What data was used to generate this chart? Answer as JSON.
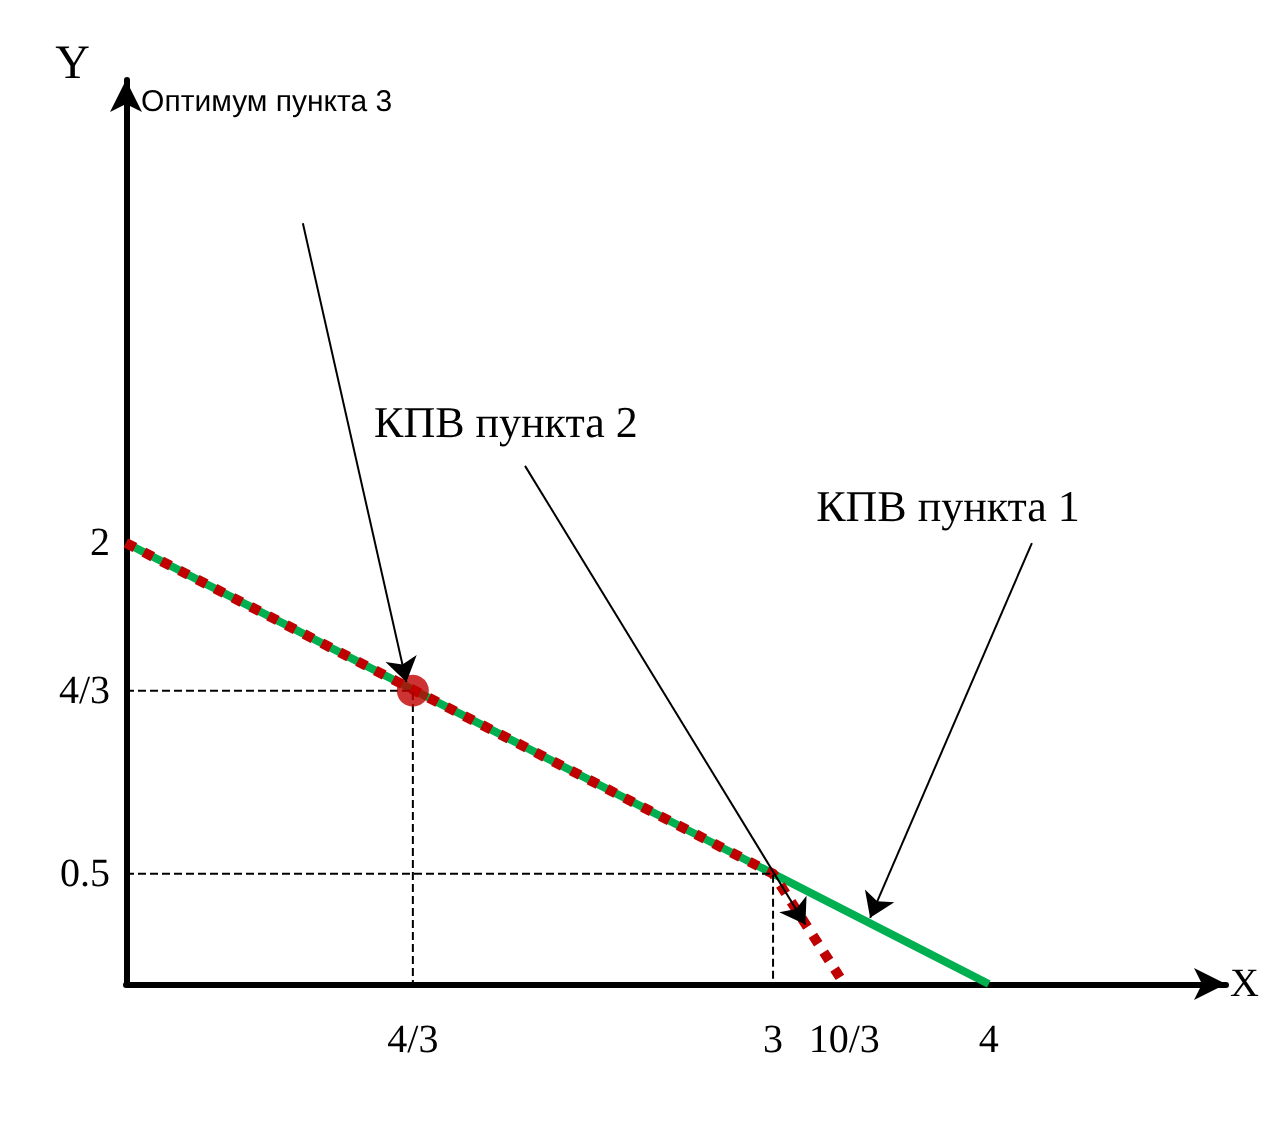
{
  "chart_data": {
    "type": "line",
    "xlabel": "X",
    "ylabel": "Y",
    "xlim": [
      0,
      5.1
    ],
    "ylim": [
      0,
      4.1
    ],
    "xticks": [
      {
        "value": 1.33,
        "label": "4/3"
      },
      3,
      {
        "value": 3.33,
        "label": "10/3"
      },
      4
    ],
    "yticks": [
      2,
      {
        "value": 1.33,
        "label": "4/3"
      },
      0.5
    ],
    "grid": false,
    "series": [
      {
        "color": "#00b050",
        "x": [
          0,
          4
        ],
        "values": [
          2,
          0
        ],
        "line_style": "solid",
        "marker": "none"
      },
      {
        "color": "#c00000",
        "x": [
          0,
          3,
          3.33
        ],
        "values": [
          2,
          0.5,
          0
        ],
        "line_style": "dotted",
        "marker": "none"
      },
      {
        "type": "scatter",
        "color": "#c00000",
        "x": [
          1.33
        ],
        "values": [
          1.33
        ],
        "marker": "circle"
      },
      {
        "color": "#000000",
        "x": [
          0,
          1.33,
          1.33
        ],
        "values": [
          1.33,
          1.33,
          0
        ],
        "line_style": "dashed",
        "marker": "none"
      },
      {
        "color": "#000000",
        "x": [
          0,
          3,
          3
        ],
        "values": [
          0.5,
          0.5,
          0
        ],
        "line_style": "dashed",
        "marker": "none"
      }
    ],
    "annotations": [
      "Оптимум пункта 3",
      {
        "text": "КПВ пункта 2",
        "x": 3.15,
        "y": 0.27
      },
      {
        "text": "КПВ пункта 1",
        "x": 3.45,
        "y": 0.3
      }
    ]
  }
}
